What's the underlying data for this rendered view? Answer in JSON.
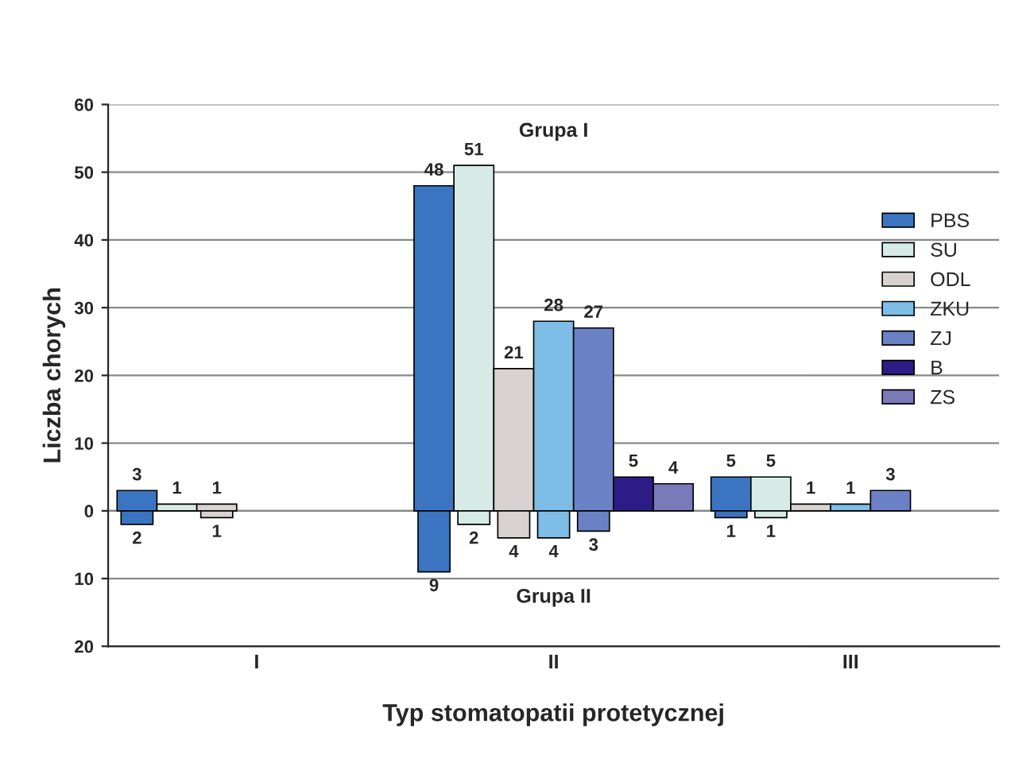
{
  "chart_data": {
    "type": "bar",
    "xlabel": "Typ stomatopatii protetycznej",
    "ylabel": "Liczba chorych",
    "categories": [
      "I",
      "II",
      "III"
    ],
    "series": [
      {
        "name": "PBS",
        "color": "#3b74c1",
        "values": [
          3,
          48,
          5
        ],
        "value_labels": [
          "3",
          "48",
          "5"
        ]
      },
      {
        "color": "#3b74c1",
        "values": [
          2,
          9,
          1
        ],
        "base": [
          -2,
          -9,
          -1
        ],
        "value_labels": [
          "2",
          "9",
          "1"
        ]
      },
      {
        "name": "SU",
        "color": "#d6ebe6",
        "values": [
          1,
          51,
          5
        ],
        "value_labels": [
          "1",
          "51",
          "5"
        ]
      },
      {
        "color": "#d6ebe6",
        "values": [
          null,
          2,
          1
        ],
        "base": [
          null,
          -2,
          -1
        ],
        "value_labels": [
          null,
          "2",
          "1"
        ]
      },
      {
        "name": "ODL",
        "color": "#d8d2d0",
        "values": [
          1,
          21,
          1
        ],
        "value_labels": [
          "1",
          "21",
          "1"
        ]
      },
      {
        "color": "#d8d2d0",
        "values": [
          1,
          4,
          null
        ],
        "base": [
          -1,
          -4,
          null
        ],
        "value_labels": [
          "1",
          "4",
          null
        ]
      },
      {
        "name": "ZKU",
        "color": "#7dbde6",
        "values": [
          null,
          28,
          1
        ],
        "value_labels": [
          null,
          "28",
          "1"
        ]
      },
      {
        "color": "#7dbde6",
        "values": [
          null,
          4,
          null
        ],
        "base": [
          null,
          -4,
          null
        ],
        "value_labels": [
          null,
          "4",
          null
        ]
      },
      {
        "name": "ZJ",
        "color": "#6b81c5",
        "values": [
          null,
          27,
          3
        ],
        "value_labels": [
          null,
          "27",
          "3"
        ]
      },
      {
        "color": "#6b81c5",
        "values": [
          null,
          3,
          null
        ],
        "base": [
          null,
          -3,
          null
        ],
        "value_labels": [
          null,
          "3",
          null
        ]
      },
      {
        "name": "B",
        "color": "#2d1b86",
        "values": [
          null,
          5,
          null
        ],
        "value_labels": [
          null,
          "5",
          null
        ]
      },
      {
        "name": "ZS",
        "color": "#7a79b9",
        "values": [
          null,
          4,
          null
        ],
        "value_labels": [
          null,
          "4",
          null
        ]
      }
    ],
    "ylim": [
      -20,
      60
    ],
    "yticks": [
      {
        "value": -20,
        "label": "20"
      },
      {
        "value": -10,
        "label": "10"
      },
      0,
      10,
      20,
      30,
      40,
      50,
      60
    ],
    "annotations": [
      "Grupa I",
      "Grupa II"
    ],
    "grid": "y",
    "legend": "right"
  }
}
